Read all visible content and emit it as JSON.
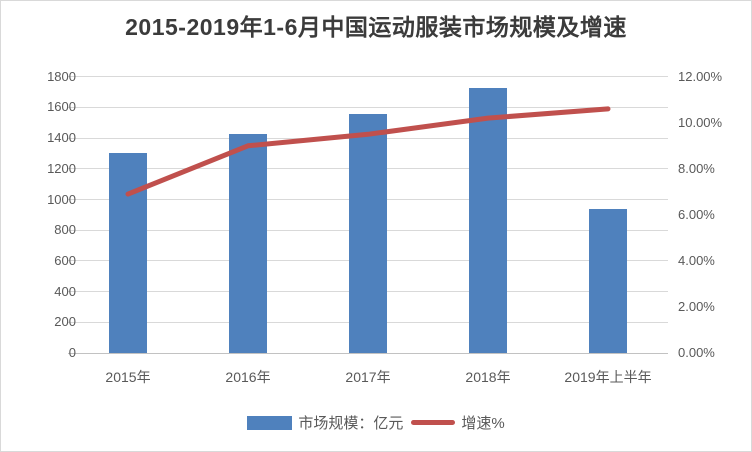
{
  "colors": {
    "bar": "#4F81BD",
    "line": "#C0504D",
    "grid": "#D9D9D9",
    "axis": "#C2C2C2",
    "text": "#595959",
    "title": "#3B3B3B",
    "background": "#FFFFFF",
    "border": "#D9D9D9"
  },
  "chart_data": {
    "type": "combo",
    "title": "2015-2019年1-6月中国运动服装市场规模及增速",
    "categories": [
      "2015年",
      "2016年",
      "2017年",
      "2018年",
      "2019年上半年"
    ],
    "series": [
      {
        "name": "市场规模：亿元",
        "type": "bar",
        "axis": "left",
        "color": "#4F81BD",
        "values": [
          1305,
          1425,
          1560,
          1725,
          940
        ]
      },
      {
        "name": "增速%",
        "type": "line",
        "axis": "right",
        "color": "#C0504D",
        "values": [
          6.9,
          9.0,
          9.5,
          10.2,
          10.6
        ]
      }
    ],
    "left_axis": {
      "min": 0,
      "max": 1800,
      "step": 200,
      "tick_labels": [
        "0",
        "200",
        "400",
        "600",
        "800",
        "1000",
        "1200",
        "1400",
        "1600",
        "1800"
      ]
    },
    "right_axis": {
      "min": 0,
      "max": 12,
      "step": 2,
      "tick_labels": [
        "0.00%",
        "2.00%",
        "4.00%",
        "6.00%",
        "8.00%",
        "10.00%",
        "12.00%"
      ]
    },
    "grid": true,
    "legend_position": "bottom"
  }
}
